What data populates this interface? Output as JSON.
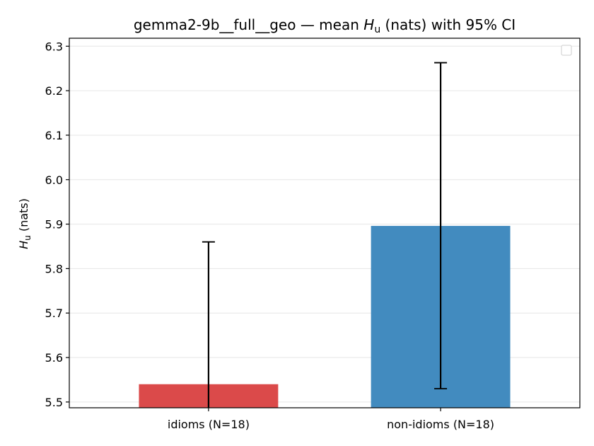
{
  "chart_data": {
    "type": "bar",
    "title_prefix": "gemma2-9b__full__geo — mean ",
    "title_symbol": "H",
    "title_subscript": "u",
    "title_suffix": " (nats) with 95% CI",
    "ylabel_symbol": "H",
    "ylabel_subscript": "u",
    "ylabel_suffix": " (nats)",
    "categories": [
      "idioms (N=18)",
      "non-idioms (N=18)"
    ],
    "values": [
      5.54,
      5.896
    ],
    "ci_lower": [
      5.487,
      5.53
    ],
    "ci_upper": [
      5.86,
      6.263
    ],
    "colors": [
      "#db4a4a",
      "#428bbf"
    ],
    "ylim": [
      5.487,
      6.318
    ],
    "yticks": [
      "5.5",
      "5.6",
      "5.7",
      "5.8",
      "5.9",
      "6.0",
      "6.1",
      "6.2",
      "6.3"
    ],
    "grid": "horizontal",
    "legend": "top-right (empty)"
  }
}
